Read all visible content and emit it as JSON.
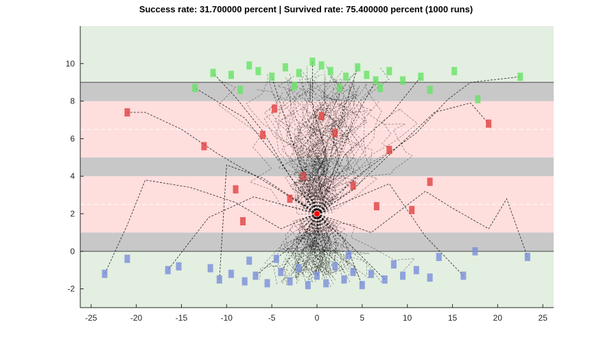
{
  "chart_data": {
    "type": "scatter",
    "title": "Success rate: 31.700000 percent | Survived rate: 75.400000 percent (1000 runs)",
    "xlim": [
      -26.2,
      26.2
    ],
    "ylim": [
      -3,
      12
    ],
    "xticks": [
      -25,
      -20,
      -15,
      -10,
      -5,
      0,
      5,
      10,
      15,
      20,
      25
    ],
    "yticks": [
      -2,
      0,
      2,
      4,
      6,
      8,
      10
    ],
    "grid": false,
    "legend": "none",
    "regions": [
      {
        "kind": "safe",
        "color": "#e3efe1",
        "y": [
          -3,
          0
        ]
      },
      {
        "kind": "wall",
        "color": "#c8c8c8",
        "y": [
          0,
          1
        ]
      },
      {
        "kind": "danger",
        "color": "#ffdede",
        "y": [
          1,
          4
        ]
      },
      {
        "kind": "wall",
        "color": "#c8c8c8",
        "y": [
          4,
          5
        ]
      },
      {
        "kind": "danger",
        "color": "#ffdede",
        "y": [
          5,
          8
        ]
      },
      {
        "kind": "wall",
        "color": "#c8c8c8",
        "y": [
          8,
          9
        ]
      },
      {
        "kind": "safe",
        "color": "#e3efe1",
        "y": [
          9,
          12
        ]
      }
    ],
    "lane_center_lines": [
      2.5,
      6.5
    ],
    "boundary_lines": [
      0,
      9
    ],
    "start_point": {
      "x": 0,
      "y": 2,
      "color": "#ff0000"
    },
    "end_markers": {
      "top_success_color": "#66e266",
      "bottom_survived_color": "#7b8fd9",
      "failure_color": "#e24040",
      "top_sample": [
        [
          -11.5,
          9.5
        ],
        [
          -9.5,
          9.4
        ],
        [
          -7.5,
          9.9
        ],
        [
          -6.5,
          9.6
        ],
        [
          -5,
          9.3
        ],
        [
          -3.5,
          9.8
        ],
        [
          -2,
          9.5
        ],
        [
          -0.5,
          10.1
        ],
        [
          0.5,
          9.9
        ],
        [
          1.5,
          9.6
        ],
        [
          3.2,
          9.3
        ],
        [
          4.5,
          9.8
        ],
        [
          5.5,
          9.4
        ],
        [
          6.5,
          9.1
        ],
        [
          8,
          9.6
        ],
        [
          9.5,
          9.1
        ],
        [
          11.5,
          9.3
        ],
        [
          12.5,
          8.6
        ],
        [
          -13.5,
          8.7
        ],
        [
          15.2,
          9.6
        ],
        [
          17.8,
          8.1
        ],
        [
          22.5,
          9.3
        ],
        [
          -2.5,
          8.8
        ],
        [
          2.5,
          8.7
        ],
        [
          7,
          8.7
        ],
        [
          -8.5,
          8.6
        ]
      ],
      "bottom_sample": [
        [
          -23.5,
          -1.2
        ],
        [
          -21,
          -0.4
        ],
        [
          -16.5,
          -1.0
        ],
        [
          -15.3,
          -0.8
        ],
        [
          -11.8,
          -0.9
        ],
        [
          -10.8,
          -1.5
        ],
        [
          -9.5,
          -1.2
        ],
        [
          -8,
          -1.6
        ],
        [
          -6.8,
          -1.3
        ],
        [
          -5.5,
          -1.7
        ],
        [
          -4,
          -1.1
        ],
        [
          -3,
          -1.6
        ],
        [
          -2,
          -0.9
        ],
        [
          -1,
          -1.8
        ],
        [
          0,
          -1.3
        ],
        [
          1,
          -1.7
        ],
        [
          2,
          -0.8
        ],
        [
          3,
          -1.5
        ],
        [
          4,
          -1.1
        ],
        [
          5,
          -1.8
        ],
        [
          6,
          -1.2
        ],
        [
          7.5,
          -1.5
        ],
        [
          8.5,
          -0.7
        ],
        [
          9.5,
          -1.3
        ],
        [
          11,
          -1.0
        ],
        [
          12.5,
          -1.4
        ],
        [
          13.5,
          -0.3
        ],
        [
          16.2,
          -1.3
        ],
        [
          17.5,
          0.0
        ],
        [
          23.3,
          -0.3
        ],
        [
          -4.5,
          -0.4
        ],
        [
          3.5,
          -0.2
        ],
        [
          -7.5,
          -0.5
        ]
      ],
      "failure_sample": [
        [
          -21,
          7.4
        ],
        [
          19,
          6.8
        ],
        [
          -12.5,
          5.6
        ],
        [
          12.5,
          3.7
        ],
        [
          -6,
          6.2
        ],
        [
          4,
          3.5
        ],
        [
          -3,
          2.8
        ],
        [
          2,
          6.3
        ],
        [
          8,
          5.4
        ],
        [
          -9,
          3.3
        ],
        [
          0.5,
          7.2
        ],
        [
          -1.5,
          4.0
        ],
        [
          10.5,
          2.2
        ],
        [
          -8.2,
          1.6
        ],
        [
          6.6,
          2.4
        ],
        [
          -4.7,
          7.6
        ]
      ]
    },
    "trajectories": {
      "style": "black dashed",
      "sample_paths": [
        [
          [
            0,
            2
          ],
          [
            -5,
            3.5
          ],
          [
            -11,
            5.2
          ],
          [
            -15,
            6.5
          ],
          [
            -19,
            7.4
          ],
          [
            -21,
            7.4
          ]
        ],
        [
          [
            0,
            2
          ],
          [
            -4,
            1.2
          ],
          [
            -9,
            2.6
          ],
          [
            -14,
            3.4
          ],
          [
            -19,
            3.8
          ],
          [
            -21,
            1.4
          ],
          [
            -23.5,
            -1.2
          ]
        ],
        [
          [
            0,
            2
          ],
          [
            5,
            4.2
          ],
          [
            11,
            6.3
          ],
          [
            14.5,
            8.1
          ],
          [
            17,
            9.0
          ],
          [
            22.5,
            9.3
          ]
        ],
        [
          [
            0,
            2
          ],
          [
            6,
            1.0
          ],
          [
            12,
            3.2
          ],
          [
            15,
            2.3
          ],
          [
            19,
            1.2
          ],
          [
            21,
            2.8
          ],
          [
            23.3,
            -0.3
          ]
        ],
        [
          [
            0,
            2
          ],
          [
            4,
            3.3
          ],
          [
            9,
            5.6
          ],
          [
            13,
            7.4
          ],
          [
            17,
            7.9
          ],
          [
            19,
            6.8
          ]
        ],
        [
          [
            0,
            2
          ],
          [
            -3,
            4.0
          ],
          [
            -6,
            6.4
          ],
          [
            -9,
            8.2
          ],
          [
            -11.5,
            9.5
          ]
        ],
        [
          [
            0,
            2
          ],
          [
            2,
            4.5
          ],
          [
            4,
            6.9
          ],
          [
            6.5,
            9.1
          ]
        ],
        [
          [
            0,
            2
          ],
          [
            -1,
            3.1
          ],
          [
            1,
            5.2
          ],
          [
            -0.5,
            7.8
          ],
          [
            -0.5,
            10.1
          ]
        ],
        [
          [
            0,
            2
          ],
          [
            -2,
            0.4
          ],
          [
            -4,
            -1.1
          ]
        ],
        [
          [
            0,
            2
          ],
          [
            3,
            0.6
          ],
          [
            5,
            -1.8
          ]
        ],
        [
          [
            0,
            2
          ],
          [
            -7,
            2.9
          ],
          [
            -12,
            1.8
          ],
          [
            -16.5,
            -1.0
          ]
        ],
        [
          [
            0,
            2
          ],
          [
            8,
            3.6
          ],
          [
            12,
            0.8
          ],
          [
            16.2,
            -1.3
          ]
        ],
        [
          [
            0,
            2
          ],
          [
            -4,
            4.7
          ],
          [
            -8,
            7.1
          ],
          [
            -13.5,
            8.7
          ]
        ],
        [
          [
            0,
            2
          ],
          [
            3,
            5.1
          ],
          [
            8,
            7.2
          ],
          [
            11.5,
            9.3
          ]
        ],
        [
          [
            0,
            2
          ],
          [
            1,
            0.2
          ],
          [
            0,
            -1.3
          ]
        ],
        [
          [
            0,
            2
          ],
          [
            -1.5,
            0.8
          ],
          [
            -6.8,
            -1.3
          ]
        ],
        [
          [
            0,
            2
          ],
          [
            2.5,
            0.9
          ],
          [
            7.5,
            -1.5
          ]
        ],
        [
          [
            0,
            2
          ],
          [
            -2.5,
            5.5
          ],
          [
            -5,
            9.3
          ]
        ],
        [
          [
            0,
            2
          ],
          [
            2,
            6.1
          ],
          [
            4.5,
            9.8
          ]
        ],
        [
          [
            0,
            2
          ],
          [
            -6,
            3.9
          ],
          [
            -10,
            4.6
          ],
          [
            -10.8,
            -1.5
          ]
        ]
      ]
    }
  }
}
